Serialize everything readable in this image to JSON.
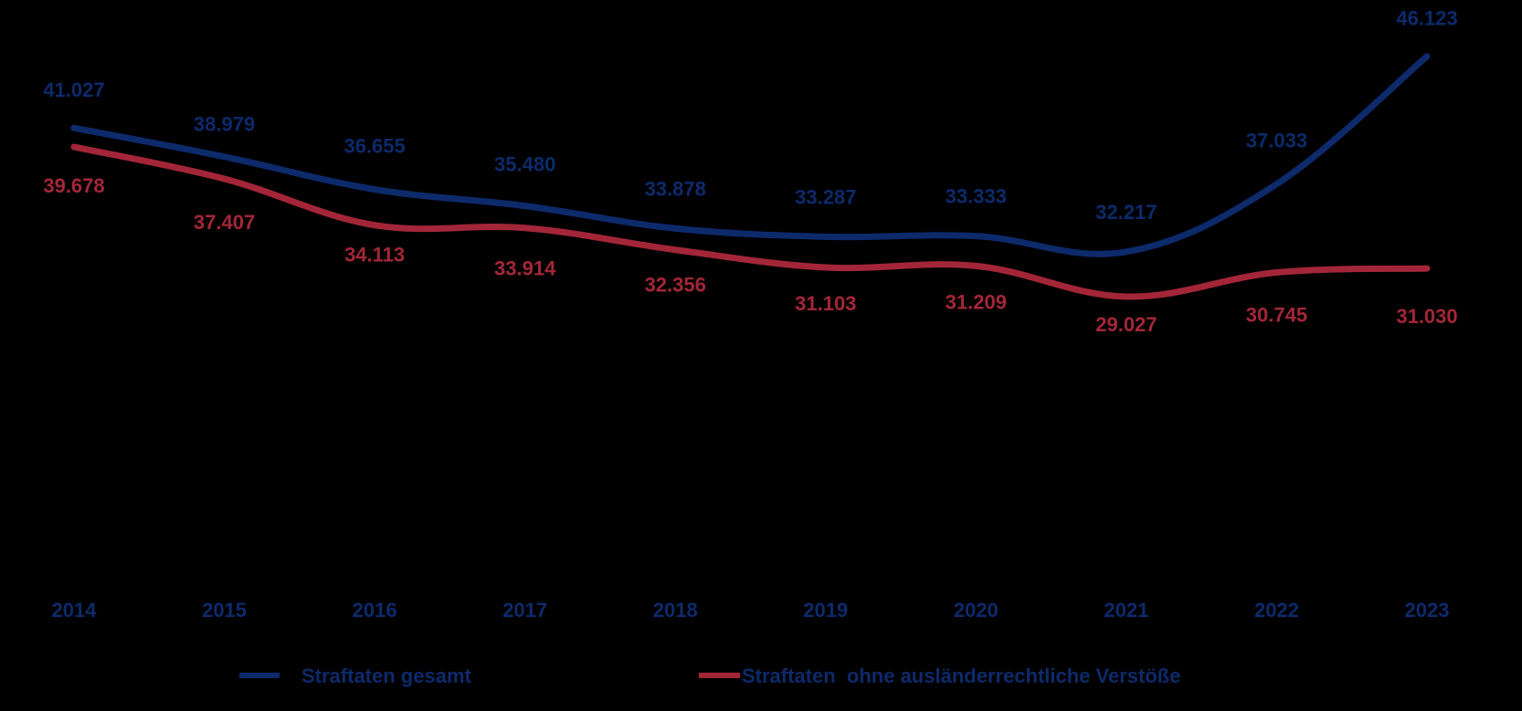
{
  "chart_data": {
    "type": "line",
    "categories": [
      "2014",
      "2015",
      "2016",
      "2017",
      "2018",
      "2019",
      "2020",
      "2021",
      "2022",
      "2023"
    ],
    "series": [
      {
        "name": "Straftaten gesamt",
        "color": "#0d2a6b",
        "values": [
          41027,
          38979,
          36655,
          35480,
          33878,
          33287,
          33333,
          32217,
          37033,
          46123
        ],
        "labels": [
          "41.027",
          "38.979",
          "36.655",
          "35.480",
          "33.878",
          "33.287",
          "33.333",
          "32.217",
          "37.033",
          "46.123"
        ]
      },
      {
        "name": "Straftaten  ohne ausländerrechtliche Verstöße",
        "color": "#a32638",
        "values": [
          39678,
          37407,
          34113,
          33914,
          32356,
          31103,
          31209,
          29027,
          30745,
          31030
        ],
        "labels": [
          "39.678",
          "37.407",
          "34.113",
          "33.914",
          "32.356",
          "31.103",
          "31.209",
          "29.027",
          "30.745",
          "31.030"
        ]
      }
    ],
    "legend_position": "bottom",
    "grid": false,
    "smooth": true
  }
}
